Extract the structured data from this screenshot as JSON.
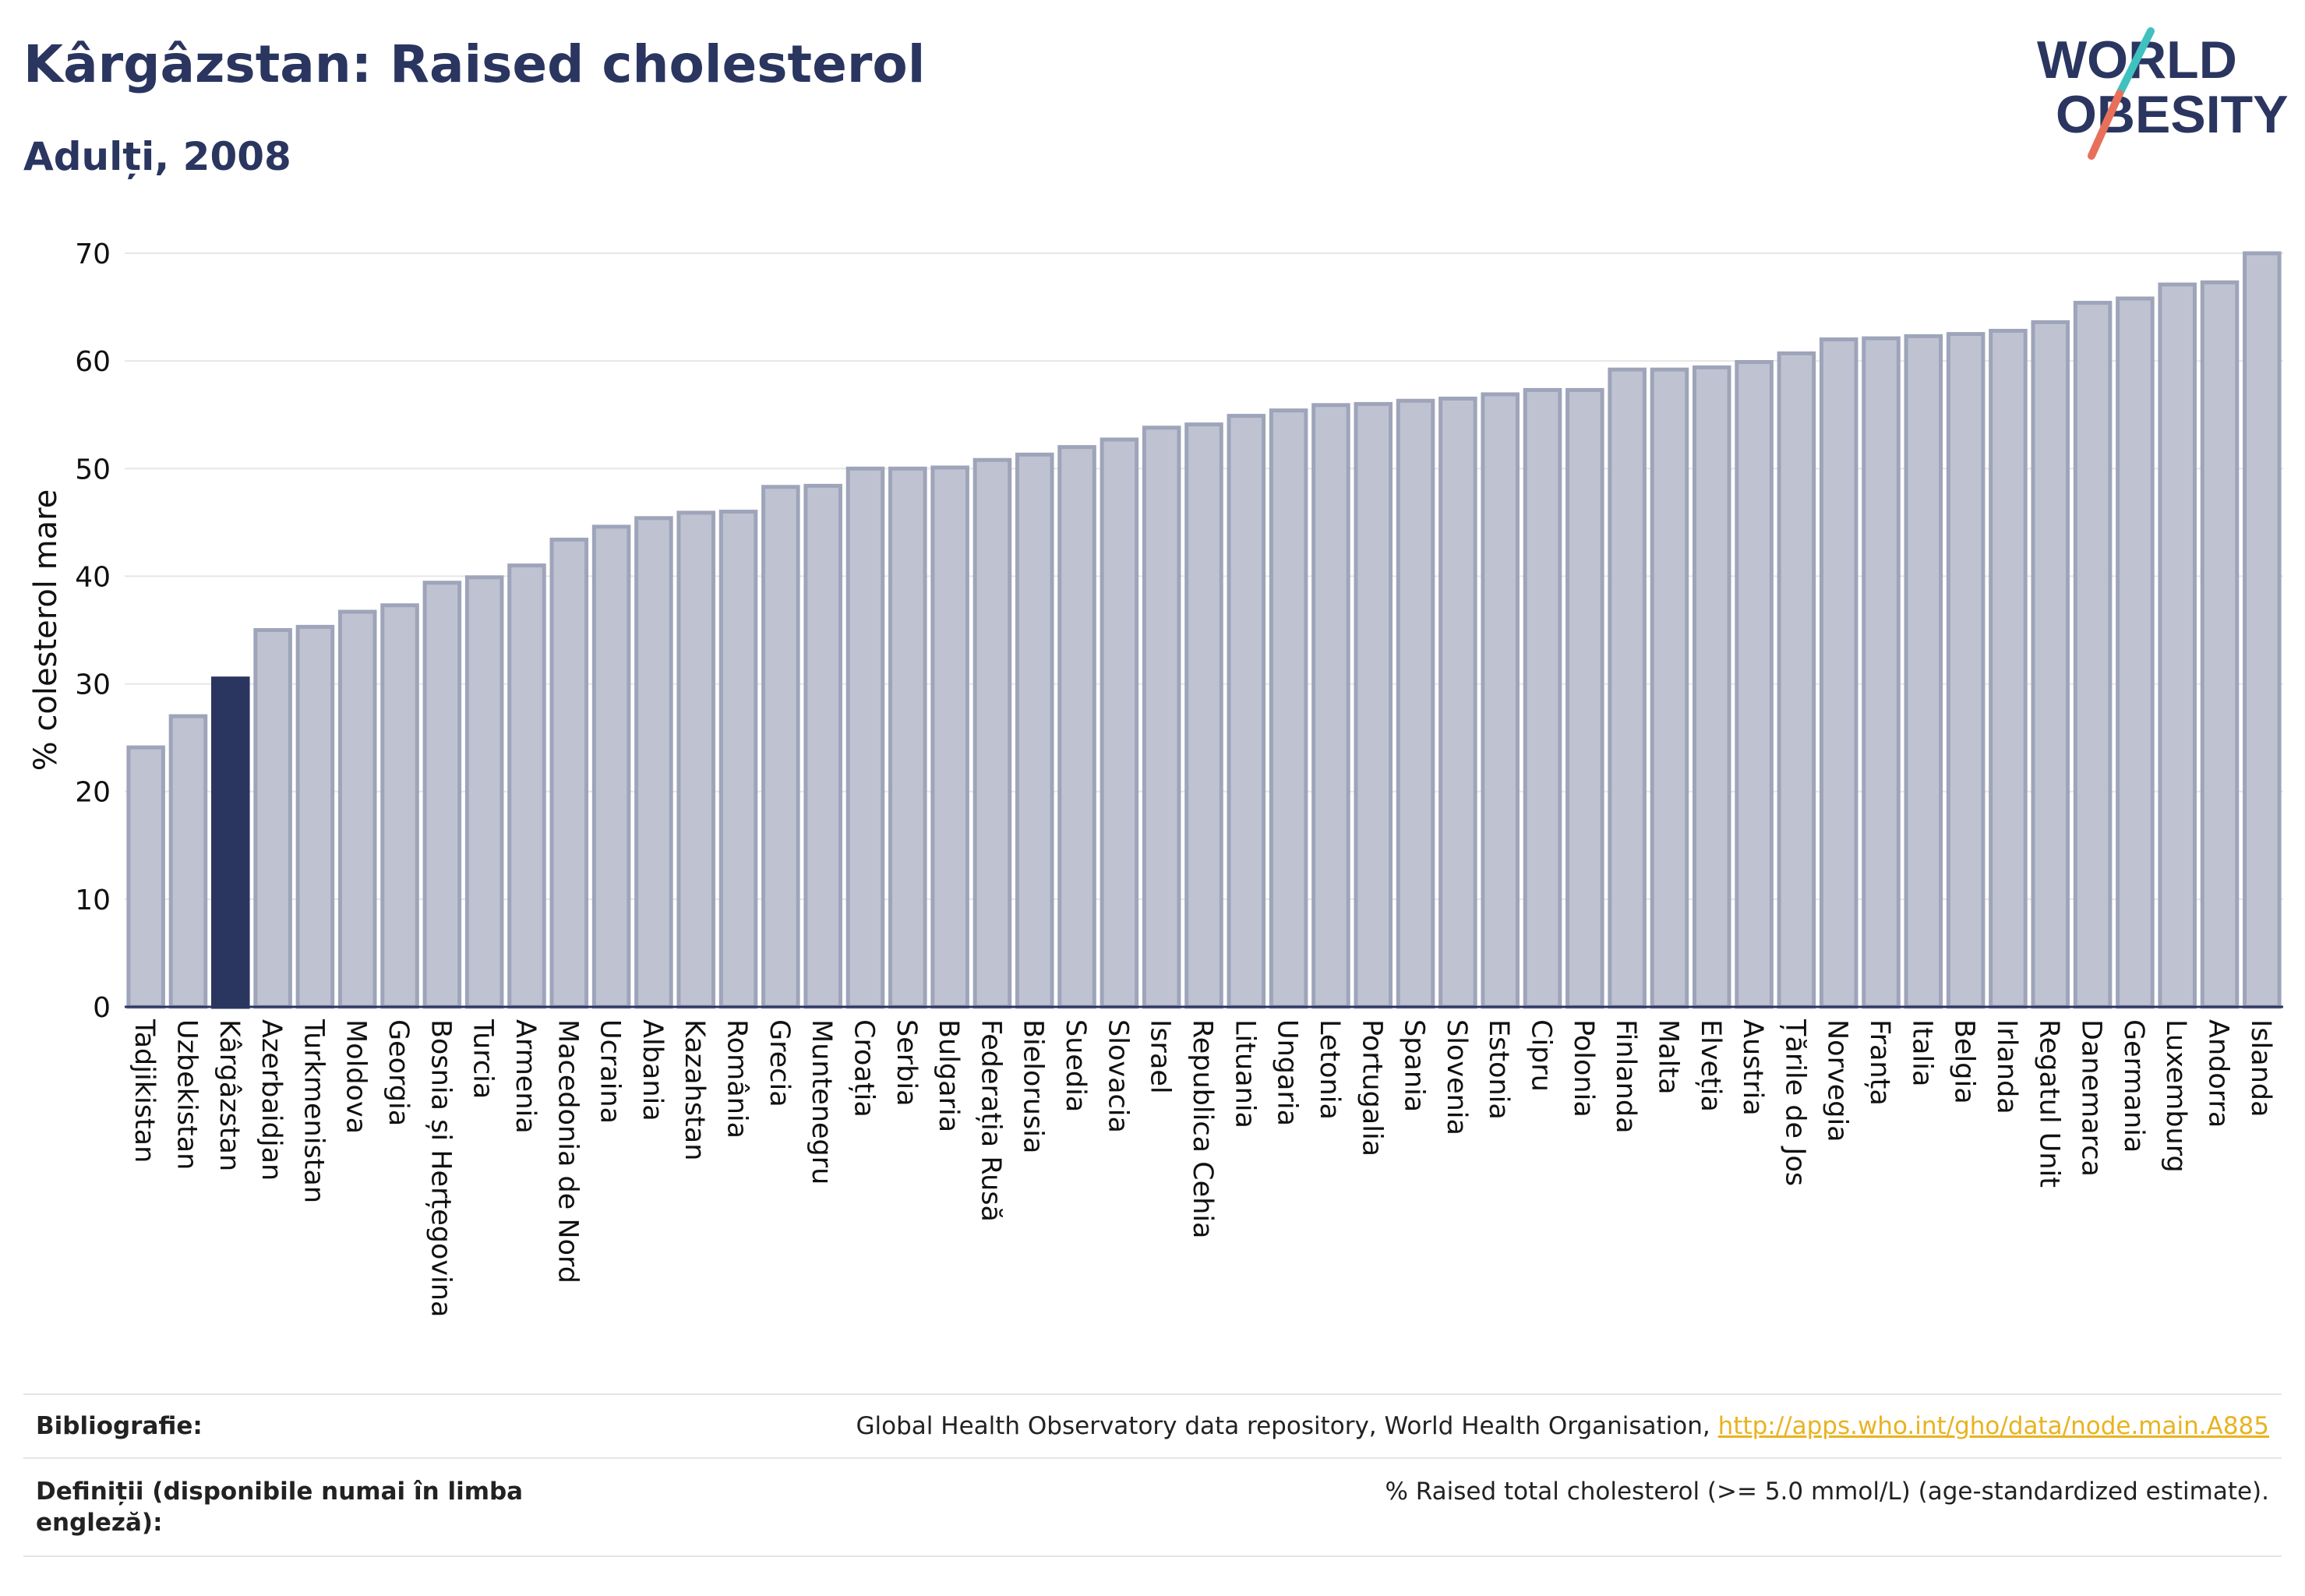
{
  "header": {
    "title": "Kârgâzstan: Raised cholesterol",
    "subtitle": "Adulți, 2008"
  },
  "logo": {
    "line1": "WORLD",
    "line2": "OBESITY",
    "text_color": "#2a3560",
    "slash_color_top": "#3fc1c0",
    "slash_color_bottom": "#e8705a"
  },
  "colors": {
    "bar": "#bfc3d1",
    "bar_border": "#9ea4b9",
    "highlight": "#2a3560",
    "grid": "#e6e6e6",
    "axis": "#2a3560"
  },
  "chart_data": {
    "type": "bar",
    "ylabel": "% colesterol mare",
    "xlabel": "",
    "ylim": [
      0,
      70
    ],
    "yticks": [
      0,
      10,
      20,
      30,
      40,
      50,
      60,
      70
    ],
    "grid": true,
    "highlight_category": "Kârgâzstan",
    "categories": [
      "Tadjikistan",
      "Uzbekistan",
      "Kârgâzstan",
      "Azerbaidjan",
      "Turkmenistan",
      "Moldova",
      "Georgia",
      "Bosnia și Herțegovina",
      "Turcia",
      "Armenia",
      "Macedonia de Nord",
      "Ucraina",
      "Albania",
      "Kazahstan",
      "România",
      "Grecia",
      "Muntenegru",
      "Croația",
      "Serbia",
      "Bulgaria",
      "Federația Rusă",
      "Bielorusia",
      "Suedia",
      "Slovacia",
      "Israel",
      "Republica Cehia",
      "Lituania",
      "Ungaria",
      "Letonia",
      "Portugalia",
      "Spania",
      "Slovenia",
      "Estonia",
      "Cipru",
      "Polonia",
      "Finlanda",
      "Malta",
      "Elveția",
      "Austria",
      "Țările de Jos",
      "Norvegia",
      "Franța",
      "Italia",
      "Belgia",
      "Irlanda",
      "Regatul Unit",
      "Danemarca",
      "Germania",
      "Luxemburg",
      "Andorra",
      "Islanda"
    ],
    "values": [
      24.1,
      27.0,
      30.5,
      35.0,
      35.3,
      36.7,
      37.3,
      39.4,
      39.9,
      41.0,
      43.4,
      44.6,
      45.4,
      45.9,
      46.0,
      48.3,
      48.4,
      50.0,
      50.0,
      50.1,
      50.8,
      51.3,
      52.0,
      52.7,
      53.8,
      54.1,
      54.9,
      55.4,
      55.9,
      56.0,
      56.3,
      56.5,
      56.9,
      57.3,
      57.3,
      59.2,
      59.2,
      59.4,
      59.9,
      60.7,
      62.0,
      62.1,
      62.3,
      62.5,
      62.8,
      63.6,
      65.4,
      65.8,
      67.1,
      67.3,
      70.0
    ]
  },
  "footer": {
    "bibliography_label": "Bibliografie:",
    "bibliography_text": "Global Health Observatory data repository, World Health Organisation, ",
    "bibliography_link": "http://apps.who.int/gho/data/node.main.A885",
    "definitions_label": "Definiții (disponibile numai în limba engleză):",
    "definitions_text": "% Raised total cholesterol (>= 5.0 mmol/L) (age-standardized estimate)."
  }
}
